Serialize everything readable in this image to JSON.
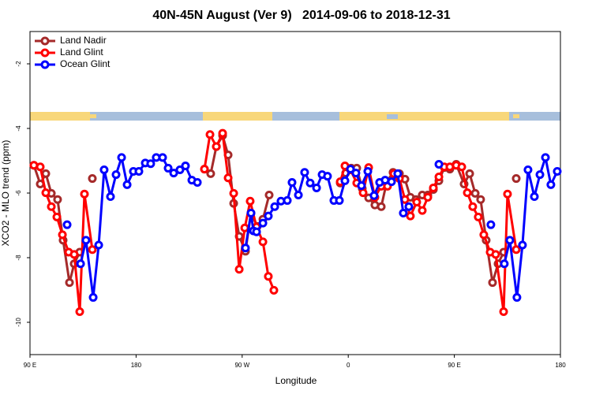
{
  "chart_data": {
    "type": "line",
    "title": "40N-45N August (Ver 9)   2014-09-06 to 2018-12-31",
    "x_label": "Longitude",
    "y_label": "XCO2 - MLO trend (ppm)",
    "xlim": [
      90,
      540
    ],
    "ylim": [
      -11,
      -1
    ],
    "xticks": [
      {
        "value": 90,
        "label": "90 E"
      },
      180,
      {
        "value": 270,
        "label": "90 W"
      },
      {
        "value": 360,
        "label": "0"
      },
      {
        "value": 450,
        "label": "90 E"
      },
      {
        "value": 540,
        "label": "180"
      }
    ],
    "yticks": [
      -10,
      -8,
      -6,
      -4,
      -2
    ],
    "legend": "top-left",
    "grid": false,
    "series": [
      {
        "name": "Land Nadir",
        "color": "#a52a2a",
        "x": [
          93.3,
          98.7,
          103.4,
          108.1,
          113.4,
          118.1,
          123.5,
          127.5,
          132.2,
          null,
          142.9,
          null,
          238.0,
          243.3,
          248.1,
          253.4,
          258.1,
          262.8,
          267.5,
          272.8,
          277.5,
          282.8,
          287.6,
          292.9,
          null,
          353.2,
          357.8,
          362.5,
          367.2,
          371.9,
          377.3,
          382.6,
          388.0,
          392.7,
          398.0,
          403.4,
          408.1,
          412.7,
          417.4,
          422.8,
          427.5,
          432.2,
          436.9,
          441.5,
          446.2,
          451.6,
          458.3,
          463.0,
          467.7,
          472.3,
          477.0,
          482.4,
          487.1,
          491.8,
          null,
          502.5
        ],
        "values": [
          -5.14,
          -5.72,
          -5.4,
          -6.01,
          -6.2,
          -7.46,
          -8.77,
          -8.19,
          -7.83,
          null,
          -5.55,
          null,
          -5.26,
          -5.4,
          -4.56,
          -4.22,
          -4.82,
          -6.32,
          -7.34,
          -7.8,
          -6.62,
          -7.03,
          -6.81,
          -6.06,
          null,
          -5.69,
          -5.38,
          -5.23,
          -5.23,
          -5.86,
          -6.15,
          -6.37,
          -6.42,
          -5.65,
          -5.36,
          -5.4,
          -5.57,
          -6.13,
          -6.2,
          -6.06,
          -6.06,
          -5.89,
          -5.62,
          -5.21,
          -5.26,
          -5.11,
          -5.72,
          -5.4,
          -6.01,
          -6.2,
          -7.46,
          -8.77,
          -8.19,
          -7.83,
          null,
          -5.55
        ]
      },
      {
        "name": "Land Glint",
        "color": "#ff0000",
        "x": [
          93.3,
          98.7,
          103.4,
          108.1,
          112.8,
          117.5,
          122.8,
          127.5,
          132.2,
          136.2,
          142.9,
          null,
          238.0,
          242.7,
          248.1,
          253.4,
          258.1,
          262.8,
          267.5,
          272.2,
          276.8,
          282.2,
          287.6,
          292.2,
          296.9,
          null,
          353.2,
          357.2,
          361.9,
          367.2,
          372.6,
          377.3,
          382.6,
          388.0,
          393.3,
          398.7,
          403.4,
          408.1,
          412.7,
          418.1,
          422.8,
          427.5,
          432.2,
          436.9,
          441.5,
          446.2,
          451.6,
          456.3,
          461.0,
          465.6,
          470.3,
          475.0,
          480.4,
          485.1,
          491.8,
          495.1,
          502.5
        ],
        "values": [
          -5.14,
          -5.19,
          -5.99,
          -6.42,
          -6.74,
          -7.29,
          -7.83,
          -7.9,
          -9.67,
          -6.03,
          -7.75,
          null,
          -5.26,
          -4.19,
          -4.56,
          -4.15,
          -5.53,
          -6.01,
          -8.36,
          -7.08,
          -6.25,
          -7.05,
          -7.51,
          -8.58,
          -9.01,
          null,
          -5.65,
          -5.16,
          -5.28,
          -5.69,
          -5.99,
          -5.21,
          -6.13,
          -5.79,
          -5.79,
          -5.4,
          -5.55,
          -6.2,
          -6.71,
          -6.28,
          -6.54,
          -6.13,
          -5.84,
          -5.5,
          -5.19,
          -5.19,
          -5.14,
          -5.19,
          -5.99,
          -6.42,
          -6.74,
          -7.29,
          -7.83,
          -7.9,
          -9.67,
          -6.03,
          -7.75
        ]
      },
      {
        "name": "Ocean Glint",
        "color": "#0000ff",
        "x": [
          121.5,
          null,
          132.9,
          137.5,
          143.6,
          148.3,
          152.9,
          158.3,
          163.0,
          167.7,
          172.4,
          177.7,
          182.4,
          187.8,
          192.4,
          197.1,
          202.5,
          207.2,
          211.9,
          217.2,
          221.9,
          227.3,
          232.0,
          null,
          272.8,
          277.5,
          279.5,
          282.2,
          287.6,
          292.2,
          297.6,
          302.9,
          308.3,
          312.3,
          317.7,
          323.0,
          327.7,
          333.1,
          337.8,
          342.4,
          347.8,
          352.5,
          357.2,
          361.9,
          366.5,
          371.2,
          376.6,
          381.9,
          386.6,
          391.3,
          396.7,
          402.0,
          406.7,
          411.4,
          null,
          436.9,
          null,
          481.0,
          null,
          492.4,
          497.1,
          503.1,
          507.8,
          512.5,
          517.9,
          522.6,
          527.3,
          531.9,
          537.3
        ],
        "values": [
          -6.98,
          null,
          -8.19,
          -7.46,
          -9.23,
          -7.61,
          -5.28,
          -6.11,
          -5.43,
          -4.9,
          -5.74,
          -5.33,
          -5.33,
          -5.07,
          -5.09,
          -4.9,
          -4.9,
          -5.23,
          -5.38,
          -5.28,
          -5.16,
          -5.6,
          -5.67,
          null,
          -7.7,
          -6.62,
          -7.17,
          -7.2,
          -6.93,
          -6.71,
          -6.42,
          -6.25,
          -6.23,
          -5.67,
          -6.06,
          -5.36,
          -5.69,
          -5.84,
          -5.43,
          -5.48,
          -6.23,
          -6.23,
          -5.62,
          -5.26,
          -5.38,
          -5.77,
          -5.33,
          -6.08,
          -5.67,
          -5.6,
          -5.65,
          -5.4,
          -6.62,
          -6.42,
          null,
          -5.11,
          null,
          -6.98,
          null,
          -8.19,
          -7.46,
          -9.23,
          -7.61,
          -5.28,
          -6.11,
          -5.43,
          -4.9,
          -5.74,
          -5.33
        ]
      }
    ]
  }
}
